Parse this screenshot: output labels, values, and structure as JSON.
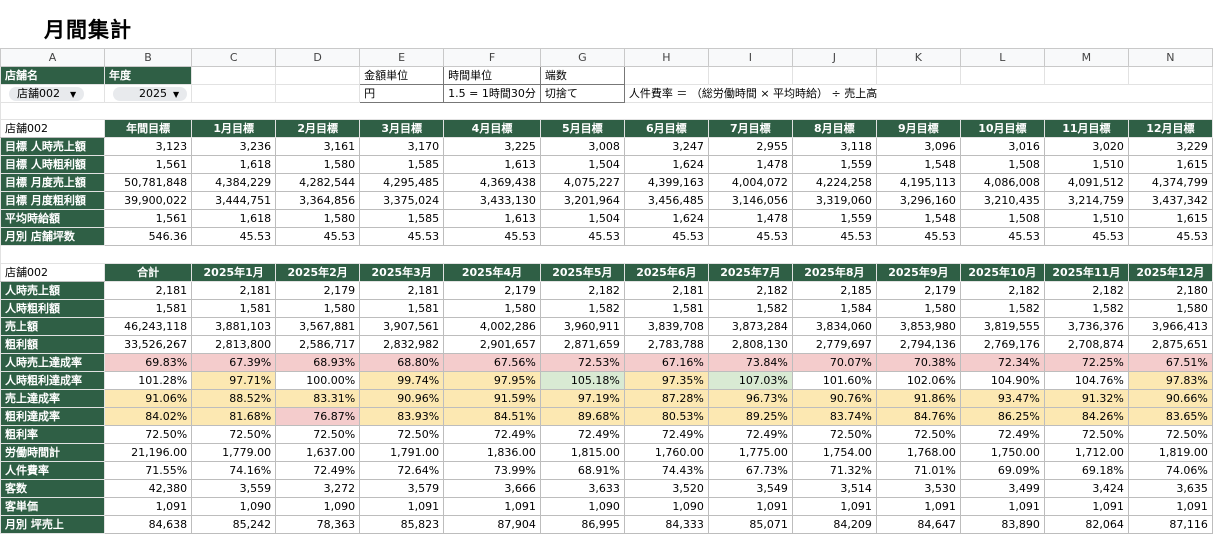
{
  "page_title": "月間集計",
  "columns": [
    "A",
    "B",
    "C",
    "D",
    "E",
    "F",
    "G",
    "H",
    "I",
    "J",
    "K",
    "L",
    "M",
    "N"
  ],
  "controls": {
    "store_label": "店舗名",
    "year_label": "年度",
    "store_value": "店舗002",
    "year_value": "2025",
    "amount_unit_label": "金額単位",
    "time_unit_label": "時間単位",
    "rounding_label": "端数",
    "amount_unit_value": "円",
    "time_unit_value": "1.5 = 1時間30分",
    "rounding_value": "切捨て",
    "formula_note": "人件費率 ＝ （総労働時間 × 平均時給） ÷ 売上高"
  },
  "target_table": {
    "store": "店舗002",
    "headers": [
      "年間目標",
      "1月目標",
      "2月目標",
      "3月目標",
      "4月目標",
      "5月目標",
      "6月目標",
      "7月目標",
      "8月目標",
      "9月目標",
      "10月目標",
      "11月目標",
      "12月目標"
    ],
    "rows": [
      {
        "label": "目標 人時売上額",
        "values": [
          "3,123",
          "3,236",
          "3,161",
          "3,170",
          "3,225",
          "3,008",
          "3,247",
          "2,955",
          "3,118",
          "3,096",
          "3,016",
          "3,020",
          "3,229"
        ]
      },
      {
        "label": "目標 人時粗利額",
        "values": [
          "1,561",
          "1,618",
          "1,580",
          "1,585",
          "1,613",
          "1,504",
          "1,624",
          "1,478",
          "1,559",
          "1,548",
          "1,508",
          "1,510",
          "1,615"
        ]
      },
      {
        "label": "目標 月度売上額",
        "values": [
          "50,781,848",
          "4,384,229",
          "4,282,544",
          "4,295,485",
          "4,369,438",
          "4,075,227",
          "4,399,163",
          "4,004,072",
          "4,224,258",
          "4,195,113",
          "4,086,008",
          "4,091,512",
          "4,374,799"
        ]
      },
      {
        "label": "目標 月度粗利額",
        "values": [
          "39,900,022",
          "3,444,751",
          "3,364,856",
          "3,375,024",
          "3,433,130",
          "3,201,964",
          "3,456,485",
          "3,146,056",
          "3,319,060",
          "3,296,160",
          "3,210,435",
          "3,214,759",
          "3,437,342"
        ]
      },
      {
        "label": "平均時給額",
        "values": [
          "1,561",
          "1,618",
          "1,580",
          "1,585",
          "1,613",
          "1,504",
          "1,624",
          "1,478",
          "1,559",
          "1,548",
          "1,508",
          "1,510",
          "1,615"
        ]
      },
      {
        "label": "月別 店舗坪数",
        "values": [
          "546.36",
          "45.53",
          "45.53",
          "45.53",
          "45.53",
          "45.53",
          "45.53",
          "45.53",
          "45.53",
          "45.53",
          "45.53",
          "45.53",
          "45.53"
        ]
      }
    ]
  },
  "actual_table": {
    "store": "店舗002",
    "headers": [
      "合計",
      "2025年1月",
      "2025年2月",
      "2025年3月",
      "2025年4月",
      "2025年5月",
      "2025年6月",
      "2025年7月",
      "2025年8月",
      "2025年9月",
      "2025年10月",
      "2025年11月",
      "2025年12月"
    ],
    "rows": [
      {
        "label": "人時売上額",
        "values": [
          "2,181",
          "2,181",
          "2,179",
          "2,181",
          "2,179",
          "2,182",
          "2,181",
          "2,182",
          "2,185",
          "2,179",
          "2,182",
          "2,182",
          "2,180"
        ]
      },
      {
        "label": "人時粗利額",
        "values": [
          "1,581",
          "1,581",
          "1,580",
          "1,581",
          "1,580",
          "1,582",
          "1,581",
          "1,582",
          "1,584",
          "1,580",
          "1,582",
          "1,582",
          "1,580"
        ]
      },
      {
        "label": "売上額",
        "values": [
          "46,243,118",
          "3,881,103",
          "3,567,881",
          "3,907,561",
          "4,002,286",
          "3,960,911",
          "3,839,708",
          "3,873,284",
          "3,834,060",
          "3,853,980",
          "3,819,555",
          "3,736,376",
          "3,966,413"
        ]
      },
      {
        "label": "粗利額",
        "values": [
          "33,526,267",
          "2,813,800",
          "2,586,717",
          "2,832,982",
          "2,901,657",
          "2,871,659",
          "2,783,788",
          "2,808,130",
          "2,779,697",
          "2,794,136",
          "2,769,176",
          "2,708,874",
          "2,875,651"
        ]
      },
      {
        "label": "人時売上達成率",
        "values": [
          "69.83%",
          "67.39%",
          "68.93%",
          "68.80%",
          "67.56%",
          "72.53%",
          "67.16%",
          "73.84%",
          "70.07%",
          "70.38%",
          "72.34%",
          "72.25%",
          "67.51%"
        ],
        "colors": [
          "pink",
          "pink",
          "pink",
          "pink",
          "pink",
          "pink",
          "pink",
          "pink",
          "pink",
          "pink",
          "pink",
          "pink",
          "pink"
        ]
      },
      {
        "label": "人時粗利達成率",
        "values": [
          "101.28%",
          "97.71%",
          "100.00%",
          "99.74%",
          "97.95%",
          "105.18%",
          "97.35%",
          "107.03%",
          "101.60%",
          "102.06%",
          "104.90%",
          "104.76%",
          "97.83%"
        ],
        "colors": [
          "",
          "yel",
          "",
          "yel",
          "yel",
          "grn",
          "yel",
          "grn",
          "",
          "",
          "",
          "",
          "yel"
        ]
      },
      {
        "label": "売上達成率",
        "values": [
          "91.06%",
          "88.52%",
          "83.31%",
          "90.96%",
          "91.59%",
          "97.19%",
          "87.28%",
          "96.73%",
          "90.76%",
          "91.86%",
          "93.47%",
          "91.32%",
          "90.66%"
        ],
        "colors": [
          "yel",
          "yel",
          "yel",
          "yel",
          "yel",
          "yel",
          "yel",
          "yel",
          "yel",
          "yel",
          "yel",
          "yel",
          "yel"
        ]
      },
      {
        "label": "粗利達成率",
        "values": [
          "84.02%",
          "81.68%",
          "76.87%",
          "83.93%",
          "84.51%",
          "89.68%",
          "80.53%",
          "89.25%",
          "83.74%",
          "84.76%",
          "86.25%",
          "84.26%",
          "83.65%"
        ],
        "colors": [
          "yel",
          "yel",
          "pink",
          "yel",
          "yel",
          "yel",
          "yel",
          "yel",
          "yel",
          "yel",
          "yel",
          "yel",
          "yel"
        ]
      },
      {
        "label": "粗利率",
        "values": [
          "72.50%",
          "72.50%",
          "72.50%",
          "72.50%",
          "72.49%",
          "72.49%",
          "72.49%",
          "72.49%",
          "72.50%",
          "72.50%",
          "72.49%",
          "72.50%",
          "72.50%"
        ]
      },
      {
        "label": "労働時間計",
        "values": [
          "21,196.00",
          "1,779.00",
          "1,637.00",
          "1,791.00",
          "1,836.00",
          "1,815.00",
          "1,760.00",
          "1,775.00",
          "1,754.00",
          "1,768.00",
          "1,750.00",
          "1,712.00",
          "1,819.00"
        ]
      },
      {
        "label": "人件費率",
        "values": [
          "71.55%",
          "74.16%",
          "72.49%",
          "72.64%",
          "73.99%",
          "68.91%",
          "74.43%",
          "67.73%",
          "71.32%",
          "71.01%",
          "69.09%",
          "69.18%",
          "74.06%"
        ]
      },
      {
        "label": "客数",
        "values": [
          "42,380",
          "3,559",
          "3,272",
          "3,579",
          "3,666",
          "3,633",
          "3,520",
          "3,549",
          "3,514",
          "3,530",
          "3,499",
          "3,424",
          "3,635"
        ]
      },
      {
        "label": "客単価",
        "values": [
          "1,091",
          "1,090",
          "1,090",
          "1,091",
          "1,091",
          "1,090",
          "1,090",
          "1,091",
          "1,091",
          "1,091",
          "1,091",
          "1,091",
          "1,091"
        ]
      },
      {
        "label": "月別 坪売上",
        "values": [
          "84,638",
          "85,242",
          "78,363",
          "85,823",
          "87,904",
          "86,995",
          "84,333",
          "85,071",
          "84,209",
          "84,647",
          "83,890",
          "82,064",
          "87,116"
        ]
      }
    ]
  }
}
